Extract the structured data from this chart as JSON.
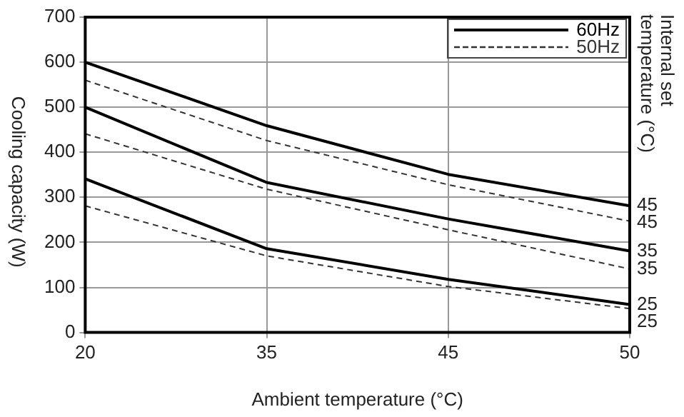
{
  "chart_data": {
    "type": "line",
    "xlabel": "Ambient temperature (°C)",
    "ylabel": "Cooling capacity (W)",
    "y2label": "Internal set temperature (°C)",
    "categories": [
      "20",
      "35",
      "45",
      "50"
    ],
    "ylim": [
      0,
      700
    ],
    "yticks": [
      0,
      100,
      200,
      300,
      400,
      500,
      600,
      700
    ],
    "grid": true,
    "legend": "top right",
    "marker": "none",
    "series": [
      {
        "name": "60Hz",
        "color": "#000000",
        "line_style": "solid",
        "values": [
          600,
          459,
          351,
          281
        ]
      },
      {
        "name": "50Hz",
        "color": "#333333",
        "line_style": "dashed",
        "values": [
          560,
          426,
          328,
          247
        ]
      },
      {
        "color": "#000000",
        "line_style": "solid",
        "values": [
          500,
          333,
          252,
          181
        ]
      },
      {
        "color": "#333333",
        "line_style": "dashed",
        "values": [
          441,
          318,
          228,
          141
        ]
      },
      {
        "color": "#000000",
        "line_style": "solid",
        "values": [
          341,
          186,
          118,
          62
        ]
      },
      {
        "color": "#333333",
        "line_style": "dashed",
        "values": [
          281,
          170,
          102,
          53
        ]
      }
    ],
    "annotations": [
      {
        "text": "45",
        "x": "50",
        "y": 281
      },
      {
        "text": "45",
        "x": "50",
        "y": 247
      },
      {
        "text": "35",
        "x": "50",
        "y": 181
      },
      {
        "text": "35",
        "x": "50",
        "y": 141
      },
      {
        "text": "25",
        "x": "50",
        "y": 62
      },
      {
        "text": "25",
        "x": "50",
        "y": 53
      }
    ]
  }
}
